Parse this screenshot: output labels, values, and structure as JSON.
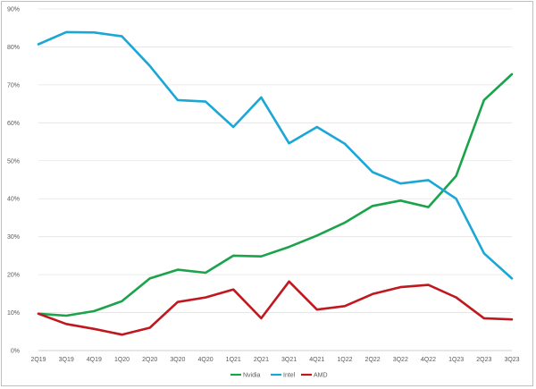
{
  "chart_data": {
    "type": "line",
    "title": "",
    "xlabel": "",
    "ylabel": "",
    "categories": [
      "2Q19",
      "3Q19",
      "4Q19",
      "1Q20",
      "2Q20",
      "3Q20",
      "4Q20",
      "1Q21",
      "2Q21",
      "3Q21",
      "4Q21",
      "1Q22",
      "2Q22",
      "3Q22",
      "4Q22",
      "1Q23",
      "2Q23",
      "3Q23"
    ],
    "yticks": [
      "0%",
      "10%",
      "20%",
      "30%",
      "40%",
      "50%",
      "60%",
      "70%",
      "80%",
      "90%"
    ],
    "ylim": [
      0,
      90
    ],
    "grid": true,
    "legend_position": "bottom",
    "series": [
      {
        "name": "Nvidia",
        "color": "#1aa34a",
        "values": [
          9.7,
          9.2,
          10.4,
          13.0,
          19.0,
          21.3,
          20.5,
          25.0,
          24.8,
          27.3,
          30.3,
          33.7,
          38.1,
          39.5,
          37.8,
          46.0,
          66.0,
          72.8
        ]
      },
      {
        "name": "Intel",
        "color": "#1ba7d6",
        "values": [
          80.7,
          83.9,
          83.8,
          82.8,
          75.0,
          66.0,
          65.6,
          58.9,
          66.7,
          54.6,
          58.9,
          54.5,
          47.0,
          44.0,
          44.9,
          40.0,
          25.6,
          19.0
        ]
      },
      {
        "name": "AMD",
        "color": "#c0181f",
        "values": [
          9.7,
          7.0,
          5.7,
          4.2,
          6.0,
          12.8,
          14.0,
          16.1,
          8.5,
          18.2,
          10.8,
          11.7,
          14.9,
          16.7,
          17.3,
          14.0,
          8.5,
          8.2
        ]
      }
    ]
  }
}
